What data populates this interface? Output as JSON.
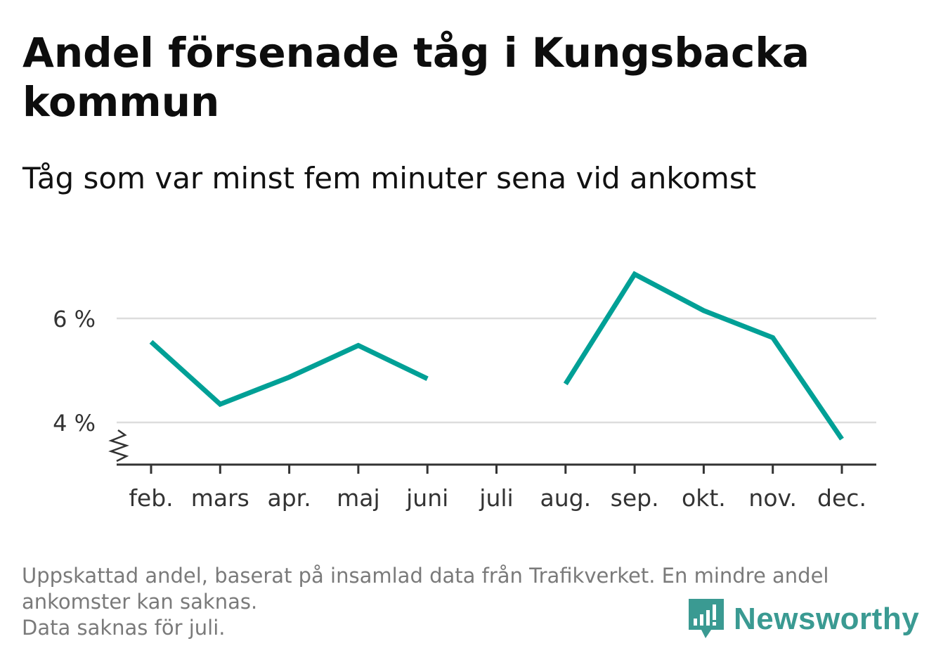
{
  "title": "Andel försenade tåg i Kungsbacka kommun",
  "subtitle": "Tåg som var minst fem minuter sena vid ankomst",
  "chart_data": {
    "type": "line",
    "categories": [
      "feb.",
      "mars",
      "apr.",
      "maj",
      "juni",
      "juli",
      "aug.",
      "sep.",
      "okt.",
      "nov.",
      "dec."
    ],
    "series": [
      {
        "values": [
          5.55,
          4.35,
          4.87,
          5.48,
          4.84,
          null,
          4.74,
          6.85,
          6.15,
          5.63,
          3.68
        ]
      }
    ],
    "y_ticks": [
      {
        "value": 4,
        "label": "4 %"
      },
      {
        "value": 6,
        "label": "6 %"
      }
    ],
    "ylim": [
      3.2,
      7.2
    ],
    "grid": true,
    "axis_break": true,
    "line_color": "#00a096"
  },
  "footnote": {
    "lines": [
      "Uppskattad andel, baserat på insamlad data från Trafikverket. En mindre andel",
      "ankomster kan saknas.",
      "Data saknas för juli."
    ]
  },
  "logo": {
    "text": "Newsworthy",
    "color": "#3a9a92"
  }
}
